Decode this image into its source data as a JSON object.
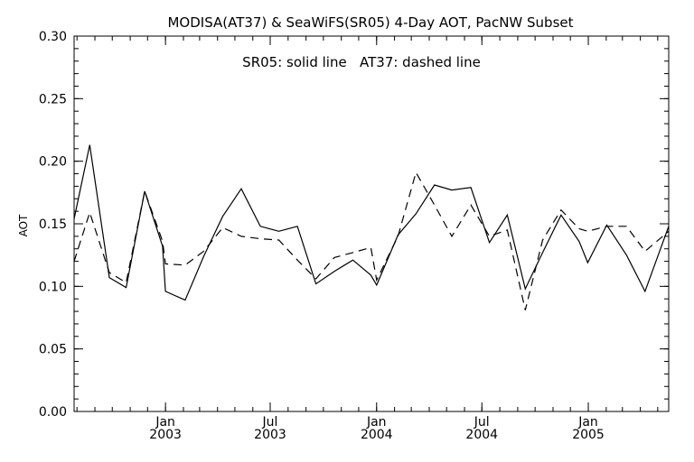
{
  "chart_data": {
    "type": "line",
    "title": "MODISA(AT37) & SeaWiFS(SR05) 4-Day AOT, PacNW Subset",
    "annotation": "SR05: solid line   AT37: dashed line",
    "ylabel": "AOT",
    "xlabel": "",
    "ylim": [
      0.0,
      0.3
    ],
    "yticks": [
      0.0,
      0.05,
      0.1,
      0.15,
      0.2,
      0.25,
      0.3
    ],
    "ytick_labels": [
      "0.00",
      "0.05",
      "0.10",
      "0.15",
      "0.20",
      "0.25",
      "0.30"
    ],
    "xlim": [
      "2002-07-27",
      "2005-05-20"
    ],
    "xticks": [
      {
        "date": "2003-01-01",
        "month": "Jan",
        "year": "2003"
      },
      {
        "date": "2003-07-01",
        "month": "Jul",
        "year": "2003"
      },
      {
        "date": "2004-01-01",
        "month": "Jan",
        "year": "2004"
      },
      {
        "date": "2004-07-01",
        "month": "Jul",
        "year": "2004"
      },
      {
        "date": "2005-01-01",
        "month": "Jan",
        "year": "2005"
      }
    ],
    "grid": false,
    "series": [
      {
        "name": "SR05",
        "style": "solid",
        "color": "#000000",
        "x": [
          "2002-07-27",
          "2002-08-23",
          "2002-09-26",
          "2002-10-25",
          "2002-11-26",
          "2002-12-27",
          "2003-01-01",
          "2003-02-04",
          "2003-03-08",
          "2003-04-10",
          "2003-05-12",
          "2003-06-14",
          "2003-07-16",
          "2003-08-17",
          "2003-09-18",
          "2003-10-20",
          "2003-11-21",
          "2003-12-22",
          "2004-01-01",
          "2004-02-07",
          "2004-03-09",
          "2004-04-10",
          "2004-05-10",
          "2004-06-12",
          "2004-07-14",
          "2004-08-14",
          "2004-09-14",
          "2004-10-14",
          "2004-11-15",
          "2004-12-16",
          "2004-12-31",
          "2005-02-02",
          "2005-03-08",
          "2005-04-09",
          "2005-05-20"
        ],
        "y": [
          0.154,
          0.213,
          0.107,
          0.099,
          0.176,
          0.132,
          0.096,
          0.089,
          0.124,
          0.156,
          0.178,
          0.148,
          0.144,
          0.148,
          0.102,
          0.112,
          0.121,
          0.109,
          0.101,
          0.141,
          0.158,
          0.181,
          0.177,
          0.179,
          0.135,
          0.157,
          0.098,
          0.127,
          0.157,
          0.136,
          0.119,
          0.149,
          0.125,
          0.096,
          0.148
        ]
      },
      {
        "name": "AT37",
        "style": "dashed",
        "color": "#000000",
        "x": [
          "2002-07-27",
          "2002-08-23",
          "2002-09-26",
          "2002-10-25",
          "2002-11-26",
          "2002-12-27",
          "2003-01-01",
          "2003-02-04",
          "2003-03-08",
          "2003-04-10",
          "2003-05-12",
          "2003-06-14",
          "2003-07-16",
          "2003-08-17",
          "2003-09-18",
          "2003-10-20",
          "2003-11-21",
          "2003-12-22",
          "2004-01-01",
          "2004-02-07",
          "2004-03-09",
          "2004-04-10",
          "2004-05-10",
          "2004-06-12",
          "2004-07-14",
          "2004-08-14",
          "2004-09-14",
          "2004-10-14",
          "2004-11-15",
          "2004-12-16",
          "2004-12-31",
          "2005-02-02",
          "2005-03-08",
          "2005-04-09",
          "2005-05-20"
        ],
        "y": [
          0.12,
          0.159,
          0.111,
          0.103,
          0.176,
          0.136,
          0.118,
          0.117,
          0.128,
          0.147,
          0.14,
          0.138,
          0.137,
          0.121,
          0.106,
          0.123,
          0.127,
          0.131,
          0.105,
          0.14,
          0.191,
          0.165,
          0.14,
          0.165,
          0.14,
          0.145,
          0.081,
          0.137,
          0.161,
          0.146,
          0.144,
          0.148,
          0.148,
          0.128,
          0.144
        ]
      }
    ]
  }
}
